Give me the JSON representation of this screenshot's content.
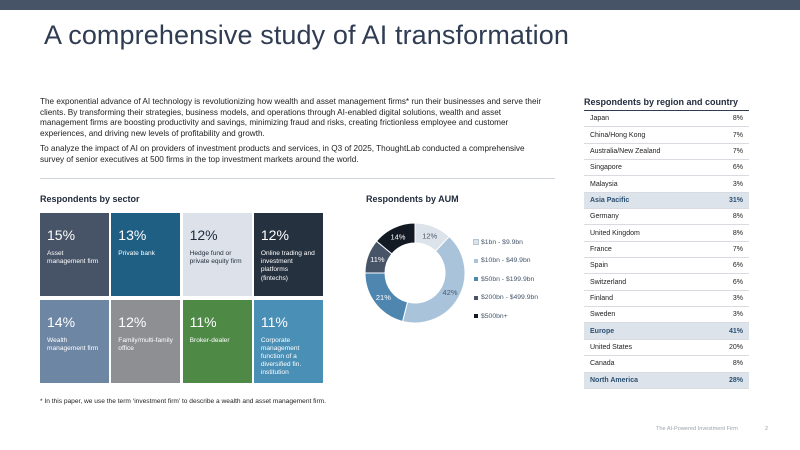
{
  "title": "A comprehensive study of AI transformation",
  "intro": {
    "p1": "The exponential advance of AI technology is revolutionizing how wealth and asset management firms* run their businesses and serve their clients. By transforming their strategies, business models, and operations through AI-enabled digital solutions, wealth and asset management firms are boosting productivity and savings, minimizing fraud and risks, creating frictionless employee and customer experiences, and driving new levels of profitability and growth.",
    "p2": "To analyze the impact of AI on providers of investment products and services, in Q3 of 2025, ThoughtLab conducted a comprehensive survey of senior executives at 500 firms in the top investment markets around the world."
  },
  "sector": {
    "heading": "Respondents by sector",
    "tiles": [
      {
        "pct": "15%",
        "label": "Asset management firm",
        "color": "#475367"
      },
      {
        "pct": "13%",
        "label": "Private bank",
        "color": "#1e5f83"
      },
      {
        "pct": "12%",
        "label": "Hedge fund or private equity firm",
        "color": "#dde2ea",
        "text": "#1f2a3a"
      },
      {
        "pct": "12%",
        "label": "Online trading and investment platforms (fintechs)",
        "color": "#26313f"
      },
      {
        "pct": "14%",
        "label": "Wealth management firm",
        "color": "#6d86a4"
      },
      {
        "pct": "12%",
        "label": "Family/multi-family office",
        "color": "#8d8f92"
      },
      {
        "pct": "11%",
        "label": "Broker-dealer",
        "color": "#4e8a46"
      },
      {
        "pct": "11%",
        "label": "Corporate management function of a diversified fin. institution",
        "color": "#4a8fb5"
      }
    ]
  },
  "aum": {
    "heading": "Respondents by AUM"
  },
  "chart_data": {
    "type": "pie",
    "title": "Respondents by AUM",
    "donut": true,
    "categories": [
      "$1bn - $9.9bn",
      "$10bn - $49.9bn",
      "$50bn - $199.9bn",
      "$200bn - $499.9bn",
      "$500bn+"
    ],
    "values": [
      12,
      42,
      21,
      11,
      14
    ],
    "data_labels": [
      "12%",
      "42%",
      "21%",
      "11%",
      "14%"
    ],
    "colors": [
      "#dde3ea",
      "#a9c4da",
      "#4e86b0",
      "#475367",
      "#141a24"
    ],
    "label_colors": [
      "#4a5a6c",
      "#4a5a6c",
      "#ffffff",
      "#ffffff",
      "#ffffff"
    ],
    "legend_position": "right"
  },
  "region": {
    "heading": "Respondents by region and country",
    "rows": [
      {
        "name": "Japan",
        "value": "8%"
      },
      {
        "name": "China/Hong Kong",
        "value": "7%"
      },
      {
        "name": "Australia/New Zealand",
        "value": "7%"
      },
      {
        "name": "Singapore",
        "value": "6%"
      },
      {
        "name": "Malaysia",
        "value": "3%"
      },
      {
        "name": "Asia Pacific",
        "value": "31%",
        "subtotal": true
      },
      {
        "name": "Germany",
        "value": "8%"
      },
      {
        "name": "United Kingdom",
        "value": "8%"
      },
      {
        "name": "France",
        "value": "7%"
      },
      {
        "name": "Spain",
        "value": "6%"
      },
      {
        "name": "Switzerland",
        "value": "6%"
      },
      {
        "name": "Finland",
        "value": "3%"
      },
      {
        "name": "Sweden",
        "value": "3%"
      },
      {
        "name": "Europe",
        "value": "41%",
        "subtotal": true
      },
      {
        "name": "United States",
        "value": "20%"
      },
      {
        "name": "Canada",
        "value": "8%"
      },
      {
        "name": "North America",
        "value": "28%",
        "subtotal": true
      }
    ]
  },
  "footnote": "* In this paper, we use the term ‘investment firm’ to describe a wealth and asset management firm.",
  "footer": {
    "publication": "The AI-Powered Investment Firm",
    "page": "2"
  }
}
